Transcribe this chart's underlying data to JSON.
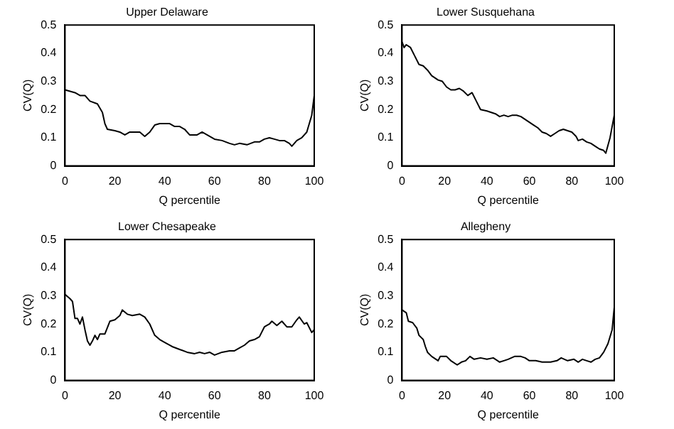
{
  "chart_data": [
    {
      "type": "line",
      "title": "Upper Delaware",
      "xlabel": "Q percentile",
      "ylabel": "CV(Q)",
      "xlim": [
        0,
        100
      ],
      "xticks": [
        0,
        20,
        40,
        60,
        80,
        100
      ],
      "ylim": [
        0,
        0.5
      ],
      "yticks": [
        0,
        0.1,
        0.2,
        0.3,
        0.4,
        0.5
      ],
      "grid": false,
      "legend": false,
      "marker": "none",
      "series": [
        {
          "color": "#000000",
          "x": [
            0,
            2,
            4,
            6,
            8,
            10,
            13,
            15,
            16,
            17,
            20,
            22,
            24,
            26,
            28,
            30,
            32,
            34,
            36,
            38,
            40,
            42,
            44,
            46,
            48,
            50,
            53,
            55,
            57,
            60,
            63,
            66,
            68,
            70,
            73,
            76,
            78,
            80,
            82,
            84,
            86,
            88,
            90,
            91,
            93,
            95,
            97,
            99,
            100
          ],
          "values": [
            0.27,
            0.265,
            0.26,
            0.25,
            0.25,
            0.23,
            0.22,
            0.19,
            0.15,
            0.13,
            0.125,
            0.12,
            0.11,
            0.12,
            0.12,
            0.12,
            0.105,
            0.12,
            0.145,
            0.15,
            0.15,
            0.15,
            0.14,
            0.14,
            0.13,
            0.11,
            0.11,
            0.12,
            0.11,
            0.095,
            0.09,
            0.08,
            0.075,
            0.08,
            0.075,
            0.085,
            0.085,
            0.095,
            0.1,
            0.095,
            0.09,
            0.09,
            0.08,
            0.07,
            0.09,
            0.1,
            0.12,
            0.18,
            0.25
          ]
        }
      ]
    },
    {
      "type": "line",
      "title": "Lower Susquehana",
      "xlabel": "Q percentile",
      "ylabel": "CV(Q)",
      "xlim": [
        0,
        100
      ],
      "xticks": [
        0,
        20,
        40,
        60,
        80,
        100
      ],
      "ylim": [
        0,
        0.5
      ],
      "yticks": [
        0,
        0.1,
        0.2,
        0.3,
        0.4,
        0.5
      ],
      "grid": false,
      "legend": false,
      "marker": "none",
      "series": [
        {
          "color": "#000000",
          "x": [
            0,
            1,
            2,
            4,
            6,
            8,
            10,
            12,
            14,
            17,
            19,
            21,
            23,
            25,
            27,
            29,
            31,
            33,
            35,
            37,
            40,
            42,
            44,
            46,
            48,
            50,
            52,
            54,
            56,
            58,
            60,
            62,
            64,
            66,
            68,
            70,
            72,
            74,
            76,
            78,
            80,
            82,
            83,
            85,
            87,
            89,
            91,
            93,
            95,
            96,
            98,
            100
          ],
          "values": [
            0.44,
            0.42,
            0.43,
            0.42,
            0.39,
            0.36,
            0.355,
            0.34,
            0.32,
            0.305,
            0.3,
            0.28,
            0.27,
            0.27,
            0.275,
            0.265,
            0.25,
            0.26,
            0.23,
            0.2,
            0.195,
            0.19,
            0.185,
            0.175,
            0.18,
            0.175,
            0.18,
            0.18,
            0.175,
            0.165,
            0.155,
            0.145,
            0.135,
            0.12,
            0.115,
            0.105,
            0.115,
            0.125,
            0.13,
            0.125,
            0.12,
            0.105,
            0.09,
            0.095,
            0.085,
            0.08,
            0.07,
            0.06,
            0.055,
            0.045,
            0.1,
            0.18
          ]
        }
      ]
    },
    {
      "type": "line",
      "title": "Lower Chesapeake",
      "xlabel": "Q percentile",
      "ylabel": "CV(Q)",
      "xlim": [
        0,
        100
      ],
      "xticks": [
        0,
        20,
        40,
        60,
        80,
        100
      ],
      "ylim": [
        0,
        0.5
      ],
      "yticks": [
        0,
        0.1,
        0.2,
        0.3,
        0.4,
        0.5
      ],
      "grid": false,
      "legend": false,
      "marker": "none",
      "series": [
        {
          "color": "#000000",
          "x": [
            0,
            2,
            3,
            4,
            5,
            6,
            7,
            8,
            9,
            10,
            11,
            12,
            13,
            14,
            16,
            18,
            20,
            22,
            23,
            25,
            27,
            30,
            32,
            34,
            36,
            38,
            40,
            43,
            46,
            49,
            52,
            54,
            56,
            58,
            60,
            63,
            66,
            68,
            70,
            72,
            74,
            76,
            78,
            80,
            82,
            83,
            85,
            87,
            89,
            91,
            93,
            94,
            96,
            97,
            99,
            100
          ],
          "values": [
            0.305,
            0.29,
            0.28,
            0.22,
            0.22,
            0.2,
            0.225,
            0.18,
            0.14,
            0.125,
            0.14,
            0.16,
            0.145,
            0.165,
            0.165,
            0.21,
            0.215,
            0.23,
            0.25,
            0.235,
            0.23,
            0.235,
            0.225,
            0.2,
            0.16,
            0.145,
            0.135,
            0.12,
            0.11,
            0.1,
            0.095,
            0.1,
            0.095,
            0.1,
            0.09,
            0.1,
            0.105,
            0.105,
            0.115,
            0.125,
            0.14,
            0.145,
            0.155,
            0.19,
            0.2,
            0.21,
            0.195,
            0.21,
            0.19,
            0.19,
            0.215,
            0.225,
            0.2,
            0.205,
            0.17,
            0.18
          ]
        }
      ]
    },
    {
      "type": "line",
      "title": "Allegheny",
      "xlabel": "Q percentile",
      "ylabel": "CV(Q)",
      "xlim": [
        0,
        100
      ],
      "xticks": [
        0,
        20,
        40,
        60,
        80,
        100
      ],
      "ylim": [
        0,
        0.5
      ],
      "yticks": [
        0,
        0.1,
        0.2,
        0.3,
        0.4,
        0.5
      ],
      "grid": false,
      "legend": false,
      "marker": "none",
      "series": [
        {
          "color": "#000000",
          "x": [
            0,
            2,
            3,
            5,
            7,
            8,
            10,
            11,
            12,
            14,
            16,
            17,
            18,
            21,
            23,
            26,
            28,
            30,
            32,
            34,
            37,
            40,
            43,
            46,
            48,
            50,
            53,
            56,
            58,
            60,
            63,
            66,
            70,
            73,
            75,
            78,
            81,
            83,
            85,
            87,
            89,
            91,
            93,
            95,
            97,
            99,
            100
          ],
          "values": [
            0.25,
            0.24,
            0.21,
            0.205,
            0.185,
            0.16,
            0.145,
            0.12,
            0.1,
            0.085,
            0.075,
            0.07,
            0.085,
            0.085,
            0.07,
            0.055,
            0.065,
            0.07,
            0.085,
            0.075,
            0.08,
            0.075,
            0.08,
            0.065,
            0.07,
            0.075,
            0.085,
            0.085,
            0.08,
            0.07,
            0.07,
            0.065,
            0.065,
            0.07,
            0.08,
            0.07,
            0.075,
            0.065,
            0.075,
            0.07,
            0.065,
            0.075,
            0.08,
            0.1,
            0.13,
            0.18,
            0.26
          ]
        }
      ]
    }
  ]
}
